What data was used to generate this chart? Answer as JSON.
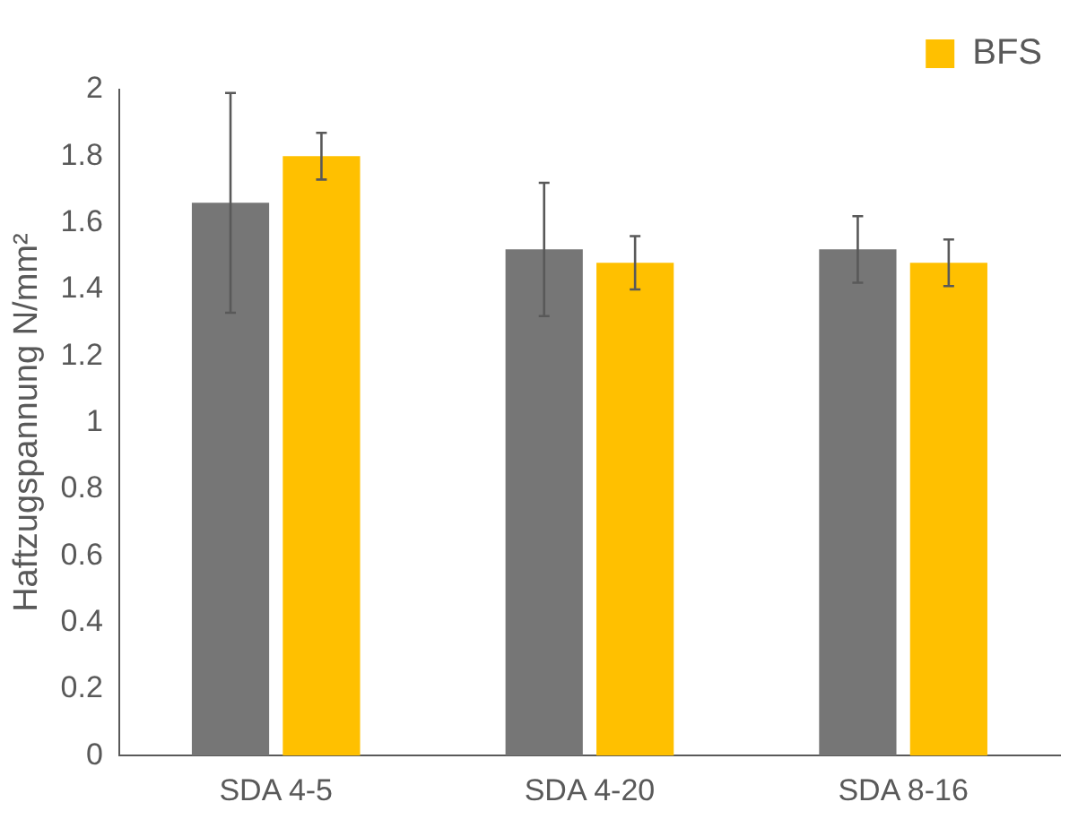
{
  "chart_data": {
    "type": "bar",
    "ylabel": "Haftzugspannung N/mm²",
    "categories": [
      "SDA 4-5",
      "SDA 4-20",
      "SDA 8-16"
    ],
    "series": [
      {
        "color": "#767676",
        "values": [
          1.66,
          1.52,
          1.52
        ],
        "errors": [
          [
            1.33,
            1.99
          ],
          [
            1.32,
            1.72
          ],
          [
            1.42,
            1.62
          ]
        ]
      },
      {
        "name": "BFS",
        "color": "#ffc000",
        "values": [
          1.8,
          1.48,
          1.48
        ],
        "errors": [
          [
            1.73,
            1.87
          ],
          [
            1.4,
            1.56
          ],
          [
            1.41,
            1.55
          ]
        ]
      }
    ],
    "ylim": [
      0,
      2
    ],
    "yticks": [
      0,
      0.2,
      0.4,
      0.6,
      0.8,
      1,
      1.2,
      1.4,
      1.6,
      1.8,
      2
    ],
    "grid": false,
    "legend": "top right"
  }
}
